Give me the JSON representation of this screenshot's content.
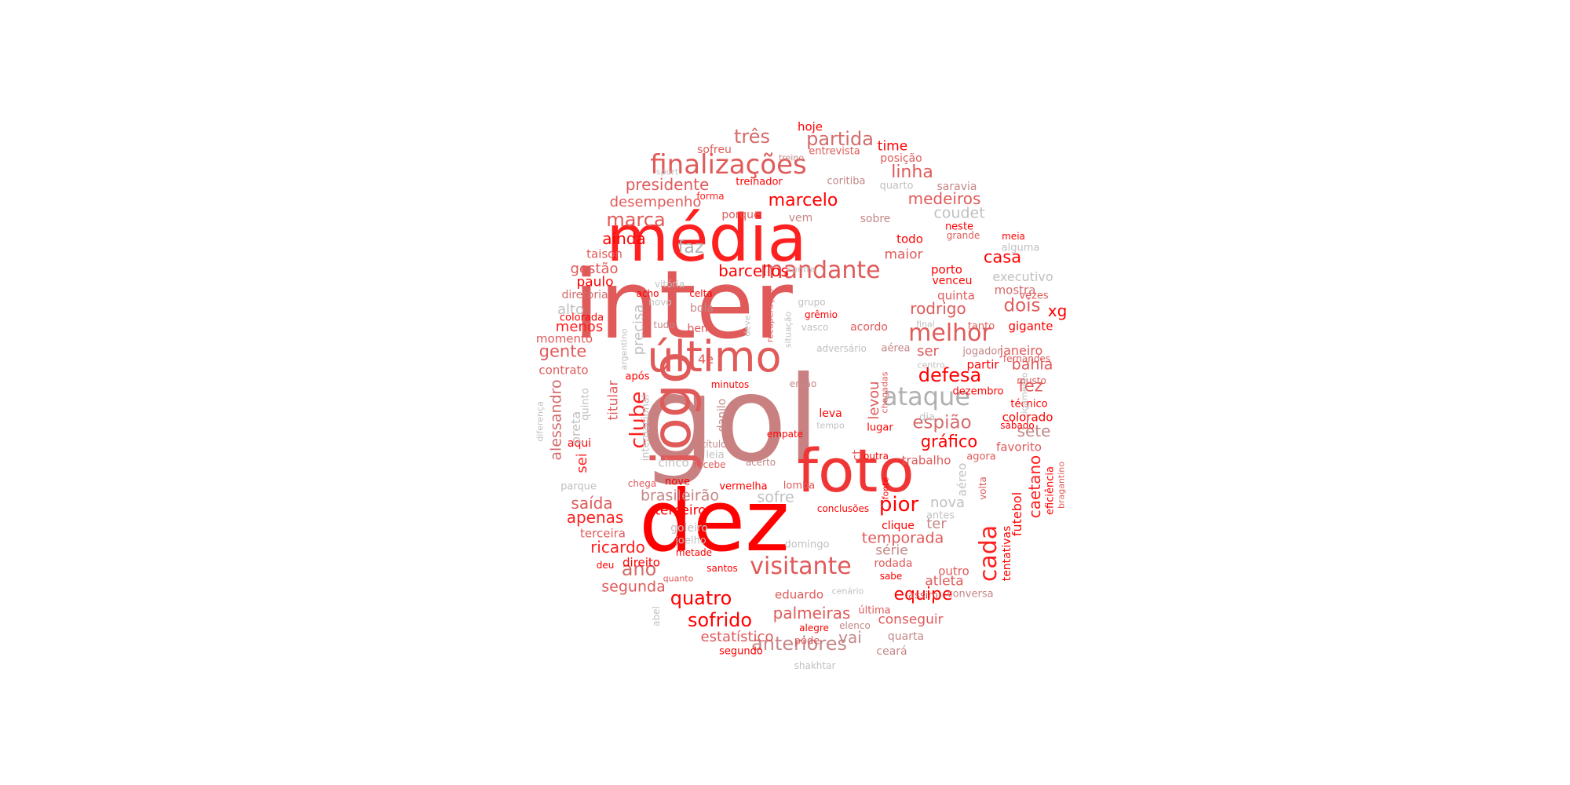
{
  "wordcloud": {
    "palette": [
      "#ff0000",
      "#e0474d",
      "#d46b6b",
      "#c58787",
      "#bdbdbd"
    ],
    "words": [
      {
        "text": "gol",
        "color": "#c98080"
      },
      {
        "text": "inter",
        "color": "#e05a5a"
      },
      {
        "text": "dez",
        "color": "#ff0000"
      },
      {
        "text": "média",
        "color": "#ff2020"
      },
      {
        "text": "foto",
        "color": "#f03535"
      },
      {
        "text": "jogo",
        "color": "#e05a5a"
      },
      {
        "text": "último",
        "color": "#e05a5a"
      },
      {
        "text": "finalizações",
        "color": "#e05a5a"
      },
      {
        "text": "ataque",
        "color": "#b0b0b0"
      },
      {
        "text": "mandante",
        "color": "#e05a5a"
      },
      {
        "text": "melhor",
        "color": "#e05a5a"
      },
      {
        "text": "visitante",
        "color": "#e05a5a"
      },
      {
        "text": "defesa",
        "color": "#ff0000"
      },
      {
        "text": "cada",
        "color": "#ff2020"
      },
      {
        "text": "clube",
        "color": "#ff2020"
      },
      {
        "text": "pior",
        "color": "#ff0000"
      },
      {
        "text": "anteriores",
        "color": "#c58787"
      },
      {
        "text": "quatro",
        "color": "#ff0000"
      },
      {
        "text": "sofrido",
        "color": "#ff0000"
      },
      {
        "text": "equipe",
        "color": "#ff0000"
      },
      {
        "text": "partida",
        "color": "#d46b6b"
      },
      {
        "text": "três",
        "color": "#d46b6b"
      },
      {
        "text": "linha",
        "color": "#e05a5a"
      },
      {
        "text": "marcelo",
        "color": "#ff0000"
      },
      {
        "text": "medeiros",
        "color": "#e05a5a"
      },
      {
        "text": "marca",
        "color": "#e05a5a"
      },
      {
        "text": "presidente",
        "color": "#e05a5a"
      },
      {
        "text": "desempenho",
        "color": "#e05a5a"
      },
      {
        "text": "coudet",
        "color": "#c0c0c0"
      },
      {
        "text": "faz",
        "color": "#b0b0b0"
      },
      {
        "text": "barcellos",
        "color": "#ff0000"
      },
      {
        "text": "ainda",
        "color": "#ff0000"
      },
      {
        "text": "casa",
        "color": "#ff0000"
      },
      {
        "text": "dois",
        "color": "#e05a5a"
      },
      {
        "text": "xg",
        "color": "#ff0000"
      },
      {
        "text": "rodrigo",
        "color": "#e05a5a"
      },
      {
        "text": "espião",
        "color": "#d46b6b"
      },
      {
        "text": "gráfico",
        "color": "#ff0000"
      },
      {
        "text": "ser",
        "color": "#e05a5a"
      },
      {
        "text": "fez",
        "color": "#e05a5a"
      },
      {
        "text": "bahia",
        "color": "#e05a5a"
      },
      {
        "text": "sete",
        "color": "#c58787"
      },
      {
        "text": "gente",
        "color": "#e05a5a"
      },
      {
        "text": "alessandro",
        "color": "#d46b6b"
      },
      {
        "text": "ano",
        "color": "#d46b6b"
      },
      {
        "text": "brasileirão",
        "color": "#c58787"
      },
      {
        "text": "sofre",
        "color": "#c0c0c0"
      },
      {
        "text": "terceiro",
        "color": "#ff0000"
      },
      {
        "text": "saída",
        "color": "#e05a5a"
      },
      {
        "text": "apenas",
        "color": "#ff2020"
      },
      {
        "text": "ricardo",
        "color": "#ff2020"
      },
      {
        "text": "segunda",
        "color": "#e05a5a"
      },
      {
        "text": "palmeiras",
        "color": "#e05a5a"
      },
      {
        "text": "vai",
        "color": "#c58787"
      },
      {
        "text": "estatístico",
        "color": "#e05a5a"
      },
      {
        "text": "temporada",
        "color": "#e05a5a"
      },
      {
        "text": "caetano",
        "color": "#ff2020"
      },
      {
        "text": "futebol",
        "color": "#ff0000"
      },
      {
        "text": "nova",
        "color": "#c0c0c0"
      },
      {
        "text": "ter",
        "color": "#c58787"
      },
      {
        "text": "série",
        "color": "#c58787"
      },
      {
        "text": "atleta",
        "color": "#e05a5a"
      },
      {
        "text": "conseguir",
        "color": "#e05a5a"
      },
      {
        "text": "titular",
        "color": "#e05a5a"
      },
      {
        "text": "precisa",
        "color": "#c0c0c0"
      },
      {
        "text": "menos",
        "color": "#ff2020"
      },
      {
        "text": "gestão",
        "color": "#e05a5a"
      },
      {
        "text": "paulo",
        "color": "#ff0000"
      },
      {
        "text": "alto",
        "color": "#c0c0c0"
      },
      {
        "text": "levou",
        "color": "#e05a5a"
      },
      {
        "text": "sei",
        "color": "#ff2020"
      },
      {
        "text": "maior",
        "color": "#e05a5a"
      },
      {
        "text": "time",
        "color": "#ff0000"
      },
      {
        "text": "hoje",
        "color": "#ff0000"
      },
      {
        "text": "sofreu",
        "color": "#e05a5a"
      },
      {
        "text": "entrevista",
        "color": "#e05a5a"
      },
      {
        "text": "posição",
        "color": "#e05a5a"
      },
      {
        "text": "treinador",
        "color": "#ff0000"
      },
      {
        "text": "coritiba",
        "color": "#c58787"
      },
      {
        "text": "quarto",
        "color": "#c0c0c0"
      },
      {
        "text": "saravia",
        "color": "#c58787"
      },
      {
        "text": "forma",
        "color": "#ff2020"
      },
      {
        "text": "porque",
        "color": "#e05a5a"
      },
      {
        "text": "vem",
        "color": "#c58787"
      },
      {
        "text": "sobre",
        "color": "#c58787"
      },
      {
        "text": "todo",
        "color": "#ff0000"
      },
      {
        "text": "neste",
        "color": "#ff0000"
      },
      {
        "text": "grande",
        "color": "#e05a5a"
      },
      {
        "text": "meia",
        "color": "#ff0000"
      },
      {
        "text": "alguma",
        "color": "#c0c0c0"
      },
      {
        "text": "executivo",
        "color": "#c0c0c0"
      },
      {
        "text": "mostra",
        "color": "#d46b6b"
      },
      {
        "text": "vezes",
        "color": "#e05a5a"
      },
      {
        "text": "gigante",
        "color": "#ff0000"
      },
      {
        "text": "taison",
        "color": "#e05a5a"
      },
      {
        "text": "diretoria",
        "color": "#d46b6b"
      },
      {
        "text": "colorada",
        "color": "#ff0000"
      },
      {
        "text": "momento",
        "color": "#e05a5a"
      },
      {
        "text": "contrato",
        "color": "#e05a5a"
      },
      {
        "text": "porto",
        "color": "#ff0000"
      },
      {
        "text": "venceu",
        "color": "#ff0000"
      },
      {
        "text": "quinta",
        "color": "#e05a5a"
      },
      {
        "text": "tanto",
        "color": "#e05a5a"
      },
      {
        "text": "jogador",
        "color": "#c58787"
      },
      {
        "text": "partir",
        "color": "#ff0000"
      },
      {
        "text": "dezembro",
        "color": "#ff0000"
      },
      {
        "text": "janeiro",
        "color": "#e05a5a"
      },
      {
        "text": "fernandes",
        "color": "#e05a5a"
      },
      {
        "text": "musto",
        "color": "#e05a5a"
      },
      {
        "text": "técnico",
        "color": "#ff0000"
      },
      {
        "text": "colorado",
        "color": "#ff0000"
      },
      {
        "text": "sábado",
        "color": "#ff0000"
      },
      {
        "text": "favorito",
        "color": "#e05a5a"
      },
      {
        "text": "agora",
        "color": "#e05a5a"
      },
      {
        "text": "trabalho",
        "color": "#e05a5a"
      },
      {
        "text": "aéreo",
        "color": "#c0c0c0"
      },
      {
        "text": "volta",
        "color": "#e05a5a"
      },
      {
        "text": "eficiência",
        "color": "#ff0000"
      },
      {
        "text": "bragantino",
        "color": "#e05a5a"
      },
      {
        "text": "tentativas",
        "color": "#ff0000"
      },
      {
        "text": "antes",
        "color": "#c0c0c0"
      },
      {
        "text": "clique",
        "color": "#ff0000"
      },
      {
        "text": "rodada",
        "color": "#e05a5a"
      },
      {
        "text": "sabe",
        "color": "#ff0000"
      },
      {
        "text": "outro",
        "color": "#e05a5a"
      },
      {
        "text": "assim",
        "color": "#e05a5a"
      },
      {
        "text": "conversa",
        "color": "#c58787"
      },
      {
        "text": "quarta",
        "color": "#c58787"
      },
      {
        "text": "ceará",
        "color": "#c58787"
      },
      {
        "text": "última",
        "color": "#e05a5a"
      },
      {
        "text": "elenco",
        "color": "#c58787"
      },
      {
        "text": "alegre",
        "color": "#ff0000"
      },
      {
        "text": "pode",
        "color": "#e05a5a"
      },
      {
        "text": "shakhtar",
        "color": "#c0c0c0"
      },
      {
        "text": "segundo",
        "color": "#ff0000"
      },
      {
        "text": "eduardo",
        "color": "#e05a5a"
      },
      {
        "text": "cenário",
        "color": "#c0c0c0"
      },
      {
        "text": "santos",
        "color": "#ff0000"
      },
      {
        "text": "domingo",
        "color": "#c0c0c0"
      },
      {
        "text": "metade",
        "color": "#ff0000"
      },
      {
        "text": "joelho",
        "color": "#c0c0c0"
      },
      {
        "text": "goleiro",
        "color": "#c0c0c0"
      },
      {
        "text": "quanto",
        "color": "#e05a5a"
      },
      {
        "text": "deu",
        "color": "#ff0000"
      },
      {
        "text": "direito",
        "color": "#ff0000"
      },
      {
        "text": "terceira",
        "color": "#e05a5a"
      },
      {
        "text": "abel",
        "color": "#c0c0c0"
      },
      {
        "text": "parque",
        "color": "#c0c0c0"
      },
      {
        "text": "aqui",
        "color": "#ff0000"
      },
      {
        "text": "preta",
        "color": "#c0c0c0"
      },
      {
        "text": "quinto",
        "color": "#c0c0c0"
      },
      {
        "text": "diferença",
        "color": "#c0c0c0"
      },
      {
        "text": "argentino",
        "color": "#c0c0c0"
      },
      {
        "text": "internacional",
        "color": "#c0c0c0"
      },
      {
        "text": "após",
        "color": "#ff0000"
      },
      {
        "text": "4e",
        "color": "#e05a5a"
      },
      {
        "text": "chega",
        "color": "#e05a5a"
      },
      {
        "text": "cinco",
        "color": "#c0c0c0"
      },
      {
        "text": "recebe",
        "color": "#e05a5a"
      },
      {
        "text": "nove",
        "color": "#ff0000"
      },
      {
        "text": "leia",
        "color": "#c0c0c0"
      },
      {
        "text": "título",
        "color": "#c58787"
      },
      {
        "text": "danilo",
        "color": "#c58787"
      },
      {
        "text": "minutos",
        "color": "#ff0000"
      },
      {
        "text": "então",
        "color": "#c58787"
      },
      {
        "text": "acerto",
        "color": "#c58787"
      },
      {
        "text": "empate",
        "color": "#ff0000"
      },
      {
        "text": "leva",
        "color": "#ff0000"
      },
      {
        "text": "tempo",
        "color": "#c0c0c0"
      },
      {
        "text": "lugar",
        "color": "#ff0000"
      },
      {
        "text": "outra",
        "color": "#ff0000"
      },
      {
        "text": "ct",
        "color": "#e05a5a"
      },
      {
        "text": "vermelha",
        "color": "#ff0000"
      },
      {
        "text": "lomba",
        "color": "#e05a5a"
      },
      {
        "text": "fonte",
        "color": "#ff0000"
      },
      {
        "text": "conclusões",
        "color": "#ff0000"
      },
      {
        "text": "chegadas",
        "color": "#e05a5a"
      },
      {
        "text": "dia",
        "color": "#c0c0c0"
      },
      {
        "text": "centro",
        "color": "#c0c0c0"
      },
      {
        "text": "aérea",
        "color": "#c58787"
      },
      {
        "text": "adversário",
        "color": "#c0c0c0"
      },
      {
        "text": "final",
        "color": "#c0c0c0"
      },
      {
        "text": "acordo",
        "color": "#e05a5a"
      },
      {
        "text": "grêmio",
        "color": "#ff0000"
      },
      {
        "text": "grupo",
        "color": "#c0c0c0"
      },
      {
        "text": "vasco",
        "color": "#c0c0c0"
      },
      {
        "text": "situação",
        "color": "#c0c0c0"
      },
      {
        "text": "recuperação",
        "color": "#e05a5a"
      },
      {
        "text": "contra",
        "color": "#c0c0c0"
      },
      {
        "text": "deve",
        "color": "#c0c0c0"
      },
      {
        "text": "bem",
        "color": "#e05a5a"
      },
      {
        "text": "bola",
        "color": "#c58787"
      },
      {
        "text": "tudo",
        "color": "#c58787"
      },
      {
        "text": "celta",
        "color": "#ff0000"
      },
      {
        "text": "acho",
        "color": "#ff0000"
      },
      {
        "text": "novo",
        "color": "#c0c0c0"
      },
      {
        "text": "vitória",
        "color": "#c0c0c0"
      },
      {
        "text": "sport",
        "color": "#c0c0c0"
      },
      {
        "text": "treino",
        "color": "#c58787"
      },
      {
        "text": "ligamento",
        "color": "#c0c0c0"
      }
    ]
  }
}
